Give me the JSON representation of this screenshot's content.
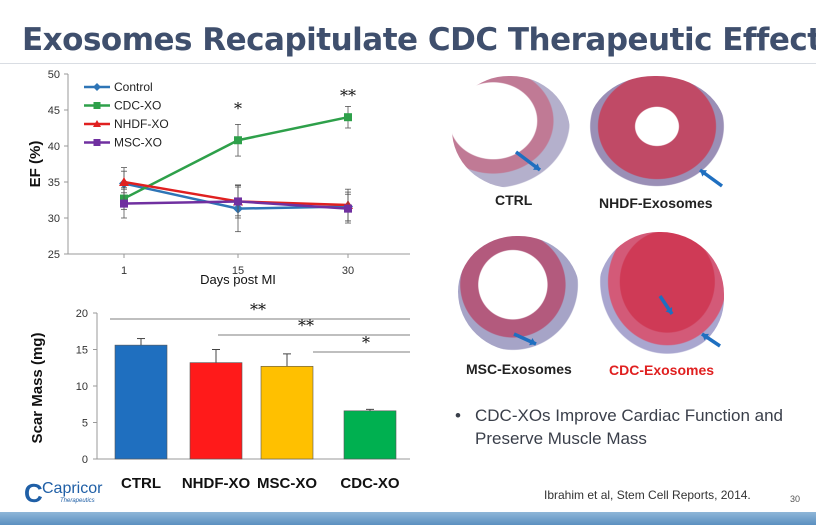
{
  "slide": {
    "title": "Exosomes Recapitulate CDC Therapeutic Effect",
    "bullet": "CDC-XOs Improve Cardiac Function and Preserve Muscle Mass",
    "citation": "Ibrahim et al, Stem Cell Reports, 2014.",
    "page_number": "30",
    "logo": {
      "name": "Capricor",
      "tagline": "Therapeutics"
    }
  },
  "images": {
    "labels": [
      "CTRL",
      "NHDF-Exosomes",
      "MSC-Exosomes",
      "CDC-Exosomes"
    ],
    "label_colors": [
      "#222222",
      "#222222",
      "#222222",
      "#e02020"
    ],
    "arrow_color": "#1f6fc0"
  },
  "chart_data": [
    {
      "type": "line",
      "xlabel": "Days post MI",
      "ylabel": "EF (%)",
      "x": [
        "1",
        "15",
        "30"
      ],
      "ylim": [
        25,
        50
      ],
      "yticks": [
        25,
        30,
        35,
        40,
        45,
        50
      ],
      "legend": "top-left",
      "series": [
        {
          "name": "Control",
          "color": "#2e75b6",
          "marker": "diamond",
          "values": [
            34.8,
            31.3,
            31.6
          ],
          "errors": [
            2.2,
            3.2,
            2.0
          ]
        },
        {
          "name": "CDC-XO",
          "color": "#2ea04a",
          "marker": "square",
          "values": [
            32.7,
            40.8,
            44.0
          ],
          "errors": [
            1.5,
            2.2,
            1.5
          ]
        },
        {
          "name": "NHDF-XO",
          "color": "#e02020",
          "marker": "triangle",
          "values": [
            35.0,
            32.3,
            31.8
          ],
          "errors": [
            1.5,
            2.0,
            2.2
          ]
        },
        {
          "name": "MSC-XO",
          "color": "#7030a0",
          "marker": "square",
          "values": [
            32.0,
            32.3,
            31.3
          ],
          "errors": [
            2.0,
            2.3,
            2.0
          ]
        }
      ],
      "annotations": [
        {
          "x": "15",
          "text": "*"
        },
        {
          "x": "30",
          "text": "**"
        }
      ]
    },
    {
      "type": "bar",
      "ylabel": "Scar Mass (mg)",
      "categories": [
        "CTRL",
        "NHDF-XO",
        "MSC-XO",
        "CDC-XO"
      ],
      "values": [
        15.6,
        13.2,
        12.7,
        6.6
      ],
      "errors": [
        0.9,
        1.8,
        1.7,
        0.2
      ],
      "colors": [
        "#1f6fbf",
        "#ff1a1a",
        "#ffc000",
        "#00b050"
      ],
      "ylim": [
        0,
        20
      ],
      "yticks": [
        0,
        5,
        10,
        15,
        20
      ],
      "significance": [
        {
          "from": "CTRL",
          "to": "CDC-XO",
          "text": "**"
        },
        {
          "from": "NHDF-XO",
          "to": "CDC-XO",
          "text": "**"
        },
        {
          "from": "MSC-XO",
          "to": "CDC-XO",
          "text": "*"
        }
      ]
    }
  ]
}
